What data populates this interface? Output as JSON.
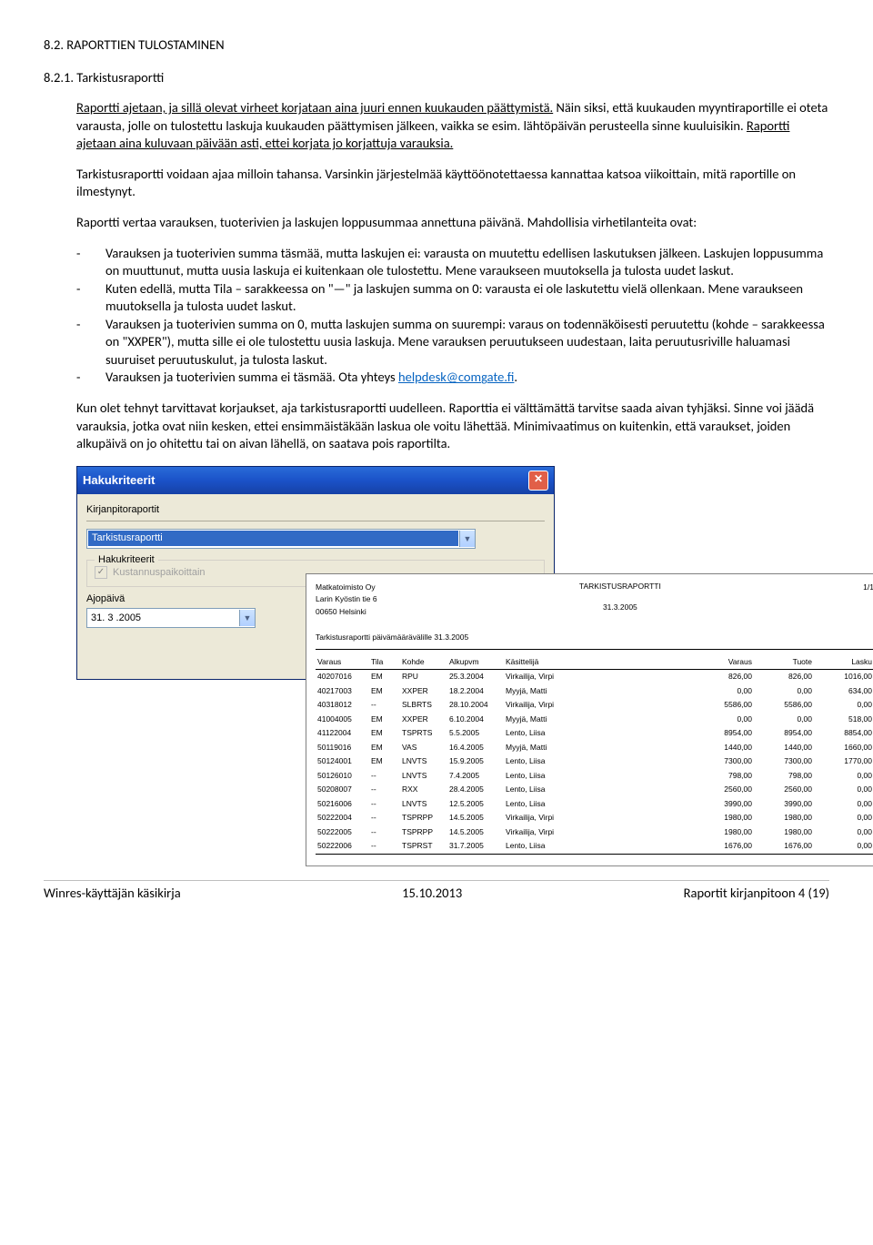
{
  "doc": {
    "h1": "8.2. RAPORTTIEN TULOSTAMINEN",
    "h2": "8.2.1. Tarkistusraportti",
    "p1a": "Raportti ajetaan, ja sillä olevat virheet korjataan aina juuri ennen kuukauden päättymistä.",
    "p1b": " Näin siksi, että kuukauden myyntiraportille ei oteta varausta, jolle on tulostettu laskuja kuukauden päättymisen jälkeen, vaikka se esim. lähtöpäivän perusteella sinne kuuluisikin. ",
    "p1c": "Raportti ajetaan aina kuluvaan päivään asti, ettei korjata jo korjattuja varauksia.",
    "p2": "Tarkistusraportti voidaan ajaa milloin tahansa. Varsinkin järjestelmää käyttöönotettaessa kannattaa katsoa viikoittain, mitä raportille on ilmestynyt.",
    "p3": "Raportti vertaa varauksen, tuoterivien ja laskujen loppusummaa annettuna päivänä. Mahdollisia virhetilanteita ovat:",
    "li1": "Varauksen ja tuoterivien summa täsmää, mutta laskujen ei: varausta on muutettu edellisen laskutuksen jälkeen. Laskujen loppusumma on muuttunut, mutta uusia laskuja ei kuitenkaan ole tulostettu. Mene varaukseen muutoksella ja tulosta uudet laskut.",
    "li2": "Kuten edellä, mutta Tila – sarakkeessa on \"—\" ja laskujen summa on 0: varausta ei ole laskutettu vielä ollenkaan. Mene varaukseen muutoksella ja tulosta uudet laskut.",
    "li3": "Varauksen ja tuoterivien summa on 0, mutta laskujen summa on suurempi: varaus on todennäköisesti peruutettu (kohde – sarakkeessa on \"XXPER\"), mutta sille ei ole tulostettu uusia laskuja. Mene varauksen peruutukseen uudestaan, laita peruutusriville haluamasi suuruiset peruutuskulut, ja tulosta laskut.",
    "li4a": "Varauksen ja tuoterivien summa ei täsmää. Ota yhteys ",
    "li4link": "helpdesk@comgate.fi",
    "li4b": ".",
    "p4": "Kun olet tehnyt tarvittavat korjaukset, aja tarkistusraportti uudelleen. Raporttia ei välttämättä tarvitse saada aivan tyhjäksi. Sinne voi jäädä varauksia, jotka ovat niin kesken, ettei ensimmäistäkään laskua ole voitu lähettää. Minimivaatimus on kuitenkin, että varaukset, joiden alkupäivä on jo ohitettu tai on aivan lähellä, on saatava pois raportilta."
  },
  "dialog": {
    "title": "Hakukriteerit",
    "section_label": "Kirjanpitoraportit",
    "select_value": "Tarkistusraportti",
    "fieldset_label": "Hakukriteerit",
    "checkbox_label": "Kustannuspaikoittain",
    "date_label": "Ajopäivä",
    "date_value": "31. 3 .2005"
  },
  "report": {
    "company": "Matkatoimisto Oy",
    "addr1": "Larin Kyöstin tie 6",
    "addr2": "00650 Helsinki",
    "title": "TARKISTUSRAPORTTI",
    "date": "31.3.2005",
    "page": "1/1",
    "subtitle": "Tarkistusraportti päivämäärävälille 31.3.2005",
    "cols": [
      "Varaus",
      "Tila",
      "Kohde",
      "Alkupvm",
      "Käsittelijä",
      "Varaus",
      "Tuote",
      "Lasku"
    ],
    "rows": [
      [
        "40207016",
        "EM",
        "RPU",
        "25.3.2004",
        "Virkailija, Virpi",
        "826,00",
        "826,00",
        "1016,00"
      ],
      [
        "40217003",
        "EM",
        "XXPER",
        "18.2.2004",
        "Myyjä, Matti",
        "0,00",
        "0,00",
        "634,00"
      ],
      [
        "40318012",
        "--",
        "SLBRTS",
        "28.10.2004",
        "Virkailija, Virpi",
        "5586,00",
        "5586,00",
        "0,00"
      ],
      [
        "41004005",
        "EM",
        "XXPER",
        "6.10.2004",
        "Myyjä, Matti",
        "0,00",
        "0,00",
        "518,00"
      ],
      [
        "41122004",
        "EM",
        "TSPRTS",
        "5.5.2005",
        "Lento, Liisa",
        "8954,00",
        "8954,00",
        "8854,00"
      ],
      [
        "50119016",
        "EM",
        "VAS",
        "16.4.2005",
        "Myyjä, Matti",
        "1440,00",
        "1440,00",
        "1660,00"
      ],
      [
        "50124001",
        "EM",
        "LNVTS",
        "15.9.2005",
        "Lento, Liisa",
        "7300,00",
        "7300,00",
        "1770,00"
      ],
      [
        "50126010",
        "--",
        "LNVTS",
        "7.4.2005",
        "Lento, Liisa",
        "798,00",
        "798,00",
        "0,00"
      ],
      [
        "50208007",
        "--",
        "RXX",
        "28.4.2005",
        "Lento, Liisa",
        "2560,00",
        "2560,00",
        "0,00"
      ],
      [
        "50216006",
        "--",
        "LNVTS",
        "12.5.2005",
        "Lento, Liisa",
        "3990,00",
        "3990,00",
        "0,00"
      ],
      [
        "50222004",
        "--",
        "TSPRPP",
        "14.5.2005",
        "Virkailija, Virpi",
        "1980,00",
        "1980,00",
        "0,00"
      ],
      [
        "50222005",
        "--",
        "TSPRPP",
        "14.5.2005",
        "Virkailija, Virpi",
        "1980,00",
        "1980,00",
        "0,00"
      ],
      [
        "50222006",
        "--",
        "TSPRST",
        "31.7.2005",
        "Lento, Liisa",
        "1676,00",
        "1676,00",
        "0,00"
      ]
    ]
  },
  "footer": {
    "left": "Winres-käyttäjän käsikirja",
    "center": "15.10.2013",
    "right": "Raportit kirjanpitoon  4 (19)"
  }
}
